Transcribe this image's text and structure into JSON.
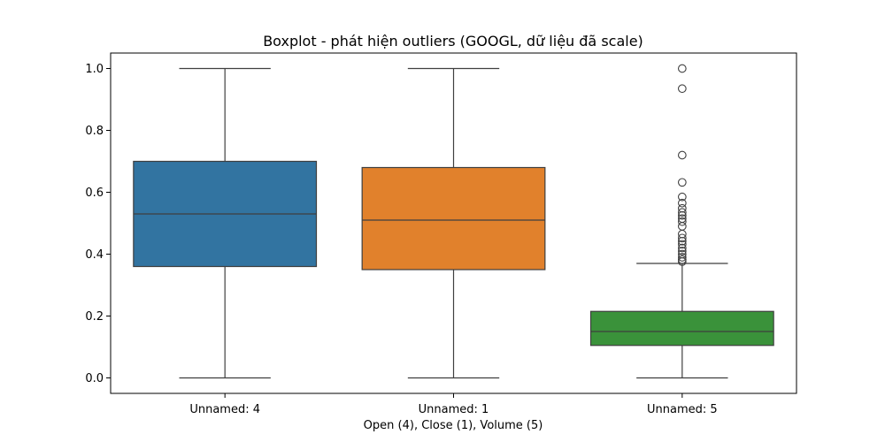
{
  "chart_data": {
    "type": "boxplot",
    "title": "Boxplot - phát hiện outliers (GOOGL, dữ liệu đã scale)",
    "xlabel": "Open (4), Close (1), Volume (5)",
    "ylabel": "",
    "ylim": [
      -0.05,
      1.05
    ],
    "yticks": [
      0.0,
      0.2,
      0.4,
      0.6,
      0.8,
      1.0
    ],
    "ytick_labels": [
      "0.0",
      "0.2",
      "0.4",
      "0.6",
      "0.8",
      "1.0"
    ],
    "grid": false,
    "categories": [
      "Unnamed: 4",
      "Unnamed: 1",
      "Unnamed: 5"
    ],
    "series": [
      {
        "category": "Unnamed: 4",
        "color": "#3274a1",
        "min": 0.0,
        "q1": 0.36,
        "median": 0.53,
        "q3": 0.7,
        "max": 1.0,
        "outliers": []
      },
      {
        "category": "Unnamed: 1",
        "color": "#e1812c",
        "min": 0.0,
        "q1": 0.35,
        "median": 0.51,
        "q3": 0.68,
        "max": 1.0,
        "outliers": []
      },
      {
        "category": "Unnamed: 5",
        "color": "#3a923a",
        "min": 0.0,
        "q1": 0.105,
        "median": 0.15,
        "q3": 0.215,
        "max": 0.37,
        "outliers": [
          1.0,
          0.935,
          0.72,
          0.632,
          0.585,
          0.565,
          0.548,
          0.535,
          0.525,
          0.515,
          0.505,
          0.49,
          0.465,
          0.452,
          0.442,
          0.432,
          0.42,
          0.41,
          0.4,
          0.39,
          0.382,
          0.376
        ]
      }
    ]
  }
}
